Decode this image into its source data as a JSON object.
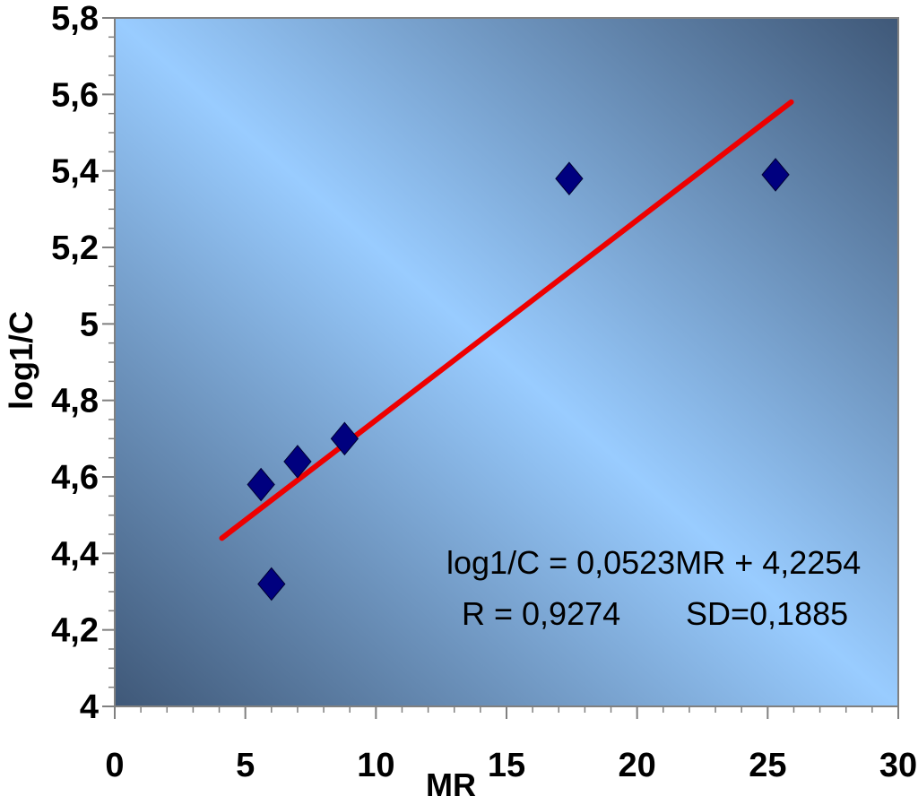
{
  "chart_data": {
    "type": "scatter",
    "title": "",
    "xlabel": "MR",
    "ylabel": "log1/C",
    "xlim": [
      0,
      30
    ],
    "ylim": [
      4,
      5.8
    ],
    "x_ticks": [
      0,
      5,
      10,
      15,
      20,
      25,
      30
    ],
    "y_ticks": [
      4,
      4.2,
      4.4,
      4.6,
      4.8,
      5,
      5.2,
      5.4,
      5.6,
      5.8
    ],
    "x_tick_labels": [
      "0",
      "5",
      "10",
      "15",
      "20",
      "25",
      "30"
    ],
    "y_tick_labels": [
      "4",
      "4,2",
      "4,4",
      "4,6",
      "4,8",
      "5",
      "5,2",
      "5,4",
      "5,6",
      "5,8"
    ],
    "grid": false,
    "points": [
      {
        "x": 5.6,
        "y": 4.58
      },
      {
        "x": 6.0,
        "y": 4.32
      },
      {
        "x": 7.0,
        "y": 4.64
      },
      {
        "x": 8.8,
        "y": 4.7
      },
      {
        "x": 17.4,
        "y": 5.38
      },
      {
        "x": 25.3,
        "y": 5.39
      }
    ],
    "trendline": {
      "slope": 0.0523,
      "intercept": 4.2254,
      "x_start": 4.1,
      "x_end": 25.9
    },
    "annotations": {
      "equation": "log1/C = 0,0523MR + 4,2254",
      "r": "R = 0,9274",
      "sd": "SD=0,1885"
    },
    "colors": {
      "marker": "#00007f",
      "trendline": "#ee0000",
      "plot_dark": "#3f5878",
      "plot_light": "#99ccff"
    }
  }
}
